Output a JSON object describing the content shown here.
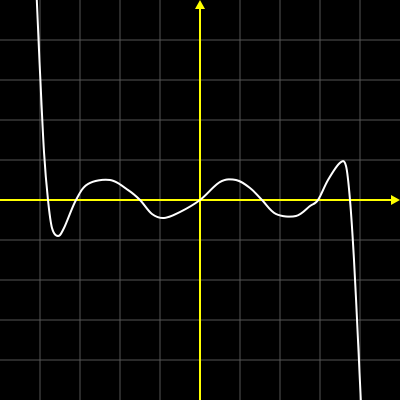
{
  "chart_data": {
    "type": "line",
    "x": [
      -4.08,
      -4.0,
      -3.9,
      -3.8,
      -3.7,
      -3.55,
      -3.4,
      -3.1,
      -2.8,
      -2.25,
      -1.8,
      -1.5,
      -1.2,
      -0.9,
      -0.5,
      0,
      0.5,
      0.9,
      1.25,
      1.55,
      1.9,
      2.4,
      2.75,
      2.95,
      3.2,
      3.5,
      3.65,
      3.75,
      3.85,
      3.95,
      4.02
    ],
    "series": [
      {
        "color": "#ffffff",
        "values": [
          5,
          3.2,
          1.2,
          0,
          -0.7,
          -0.9,
          -0.7,
          0,
          0.4,
          0.5,
          0.25,
          0,
          -0.35,
          -0.45,
          -0.3,
          0,
          0.45,
          0.5,
          0.3,
          0,
          -0.35,
          -0.4,
          -0.15,
          0,
          0.5,
          0.93,
          0.85,
          0,
          -1.5,
          -3.5,
          -5
        ]
      }
    ],
    "xlim": [
      -5,
      5
    ],
    "ylim": [
      -5,
      5
    ],
    "xticks": [
      -4,
      -3,
      -2,
      -1,
      1,
      2,
      3,
      4
    ],
    "yticks": [
      -4,
      -3,
      -2,
      -1,
      1,
      2,
      3,
      4
    ],
    "grid": true,
    "grid_color": "#555555",
    "axis_color": "#ffff00"
  }
}
